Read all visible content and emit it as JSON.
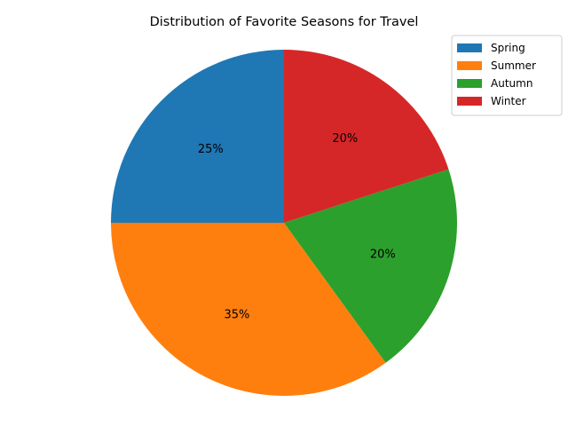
{
  "chart_data": {
    "type": "pie",
    "title": "Distribution of Favorite Seasons for Travel",
    "categories": [
      "Spring",
      "Summer",
      "Autumn",
      "Winter"
    ],
    "values": [
      25,
      35,
      20,
      20
    ],
    "labels": [
      "25%",
      "35%",
      "20%",
      "20%"
    ],
    "colors": [
      "#1f77b4",
      "#ff7f0e",
      "#2ca02c",
      "#d62728"
    ],
    "start_angle_deg": 90,
    "direction": "counterclockwise",
    "legend": {
      "position": "top-right",
      "entries": [
        "Spring",
        "Summer",
        "Autumn",
        "Winter"
      ]
    }
  }
}
